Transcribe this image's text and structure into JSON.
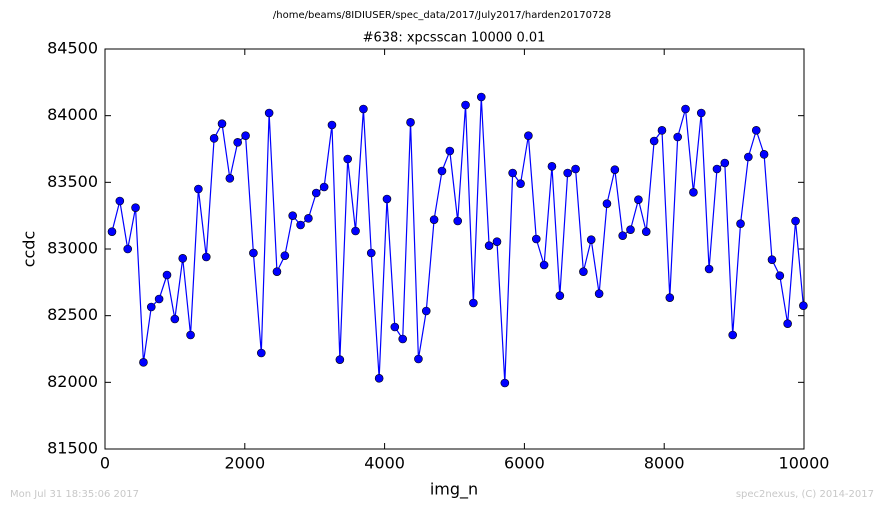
{
  "chart_data": {
    "type": "line",
    "title": "/home/beams/8IDIUSER/spec_data/2017/July2017/harden20170728",
    "subtitle": "#638: xpcsscan 10000 0.01",
    "x_label": "img_n",
    "y_label": "ccdc",
    "footer_left": "Mon Jul 31 18:35:06 2017",
    "footer_right": "spec2nexus, (C) 2014-2017",
    "xlim": [
      0,
      10000
    ],
    "xticks": [
      0,
      2000,
      4000,
      6000,
      8000,
      10000
    ],
    "ylim": [
      81500,
      84500
    ],
    "yticks": [
      81500,
      82000,
      82500,
      83000,
      83500,
      84000,
      84500
    ],
    "grid": false,
    "x": [
      100,
      212,
      325,
      437,
      550,
      662,
      774,
      887,
      999,
      1112,
      1224,
      1336,
      1449,
      1561,
      1674,
      1786,
      1898,
      2011,
      2123,
      2236,
      2348,
      2460,
      2573,
      2685,
      2798,
      2910,
      3022,
      3135,
      3247,
      3360,
      3472,
      3584,
      3697,
      3809,
      3922,
      4034,
      4146,
      4259,
      4371,
      4484,
      4596,
      4708,
      4821,
      4933,
      5046,
      5158,
      5270,
      5383,
      5495,
      5608,
      5720,
      5832,
      5945,
      6057,
      6170,
      6282,
      6394,
      6507,
      6619,
      6732,
      6844,
      6956,
      7069,
      7181,
      7294,
      7406,
      7518,
      7631,
      7743,
      7856,
      7968,
      8080,
      8193,
      8305,
      8418,
      8530,
      8642,
      8755,
      8867,
      8980,
      9092,
      9204,
      9317,
      9429,
      9542,
      9654,
      9766,
      9879,
      9991
    ],
    "series": [
      {
        "color": "#0000ff",
        "values": [
          83130,
          83360,
          83000,
          83310,
          82150,
          82565,
          82625,
          82805,
          82475,
          82930,
          82355,
          83450,
          82940,
          83830,
          83940,
          83530,
          83800,
          83850,
          82970,
          82220,
          84020,
          82830,
          82950,
          83250,
          83180,
          83230,
          83420,
          83465,
          83930,
          82170,
          83675,
          83135,
          84050,
          82970,
          82030,
          83375,
          82415,
          82325,
          83950,
          82175,
          82535,
          83220,
          83585,
          83735,
          83210,
          84080,
          82595,
          84140,
          83025,
          83055,
          81995,
          83570,
          83490,
          83850,
          83075,
          82880,
          83620,
          82650,
          83570,
          83600,
          82830,
          83070,
          82665,
          83340,
          83595,
          83100,
          83145,
          83370,
          83130,
          83810,
          83890,
          82635,
          83840,
          84050,
          83425,
          84020,
          82850,
          83600,
          83645,
          82355,
          83190,
          83690,
          83890,
          83710,
          82920,
          82800,
          82440,
          83210,
          82575
        ]
      }
    ]
  }
}
